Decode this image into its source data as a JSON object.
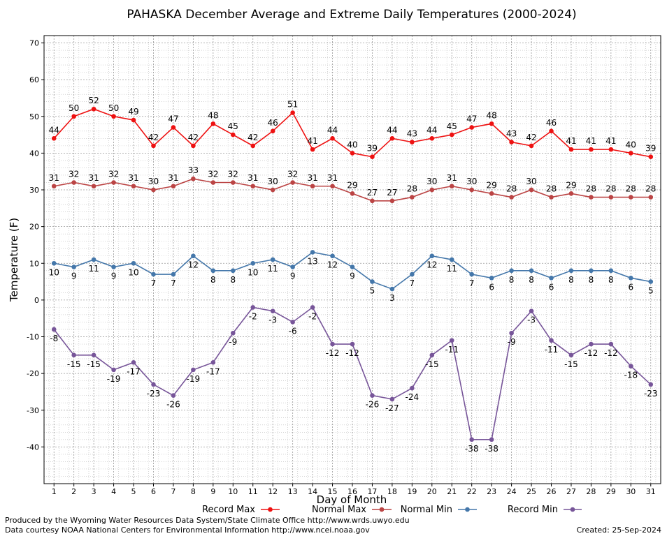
{
  "chart_data": {
    "type": "line",
    "title": "PAHASKA December Average and Extreme Daily Temperatures (2000-2024)",
    "xlabel": "Day of Month",
    "ylabel": "Temperature (F)",
    "ylim": [
      -50,
      72
    ],
    "yticks": [
      70,
      60,
      50,
      40,
      30,
      20,
      10,
      0,
      -10,
      -20,
      -30,
      -40
    ],
    "x": [
      1,
      2,
      3,
      4,
      5,
      6,
      7,
      8,
      9,
      10,
      11,
      12,
      13,
      14,
      15,
      16,
      17,
      18,
      19,
      20,
      21,
      22,
      23,
      24,
      25,
      26,
      27,
      28,
      29,
      30,
      31
    ],
    "grid": true,
    "legend_position": "bottom",
    "series": [
      {
        "name": "Record Max",
        "color": "#ee1111",
        "label_pos": "above",
        "values": [
          44,
          50,
          52,
          50,
          49,
          42,
          47,
          42,
          48,
          45,
          42,
          46,
          51,
          41,
          44,
          40,
          39,
          44,
          43,
          44,
          45,
          47,
          48,
          43,
          42,
          46,
          41,
          41,
          41,
          40,
          39
        ]
      },
      {
        "name": "Normal Max",
        "color": "#bb4444",
        "label_pos": "above",
        "values": [
          31,
          32,
          31,
          32,
          31,
          30,
          31,
          33,
          32,
          32,
          31,
          30,
          32,
          31,
          31,
          29,
          27,
          27,
          28,
          30,
          31,
          30,
          29,
          28,
          30,
          28,
          29,
          28,
          28,
          28,
          28
        ]
      },
      {
        "name": "Normal Min",
        "color": "#4477aa",
        "label_pos": "below",
        "values": [
          10,
          9,
          11,
          9,
          10,
          7,
          7,
          12,
          8,
          8,
          10,
          11,
          9,
          13,
          12,
          9,
          5,
          3,
          7,
          12,
          11,
          7,
          6,
          8,
          8,
          6,
          8,
          8,
          8,
          6,
          5
        ]
      },
      {
        "name": "Record Min",
        "color": "#775599",
        "label_pos": "below",
        "values": [
          -8,
          -15,
          -15,
          -19,
          -17,
          -23,
          -26,
          -19,
          -17,
          -9,
          -2,
          -3,
          -6,
          -2,
          -12,
          -12,
          -26,
          -27,
          -24,
          -15,
          -11,
          -38,
          -38,
          -9,
          -3,
          -11,
          -15,
          -12,
          -12,
          -18,
          -23
        ]
      }
    ]
  },
  "footer": {
    "produced_by": "Produced by the Wyoming Water Resources Data System/State Climate Office http://www.wrds.uwyo.edu",
    "courtesy": "Data courtesy NOAA National Centers for Environmental Information http://www.ncei.noaa.gov",
    "created": "Created:  25-Sep-2024"
  }
}
